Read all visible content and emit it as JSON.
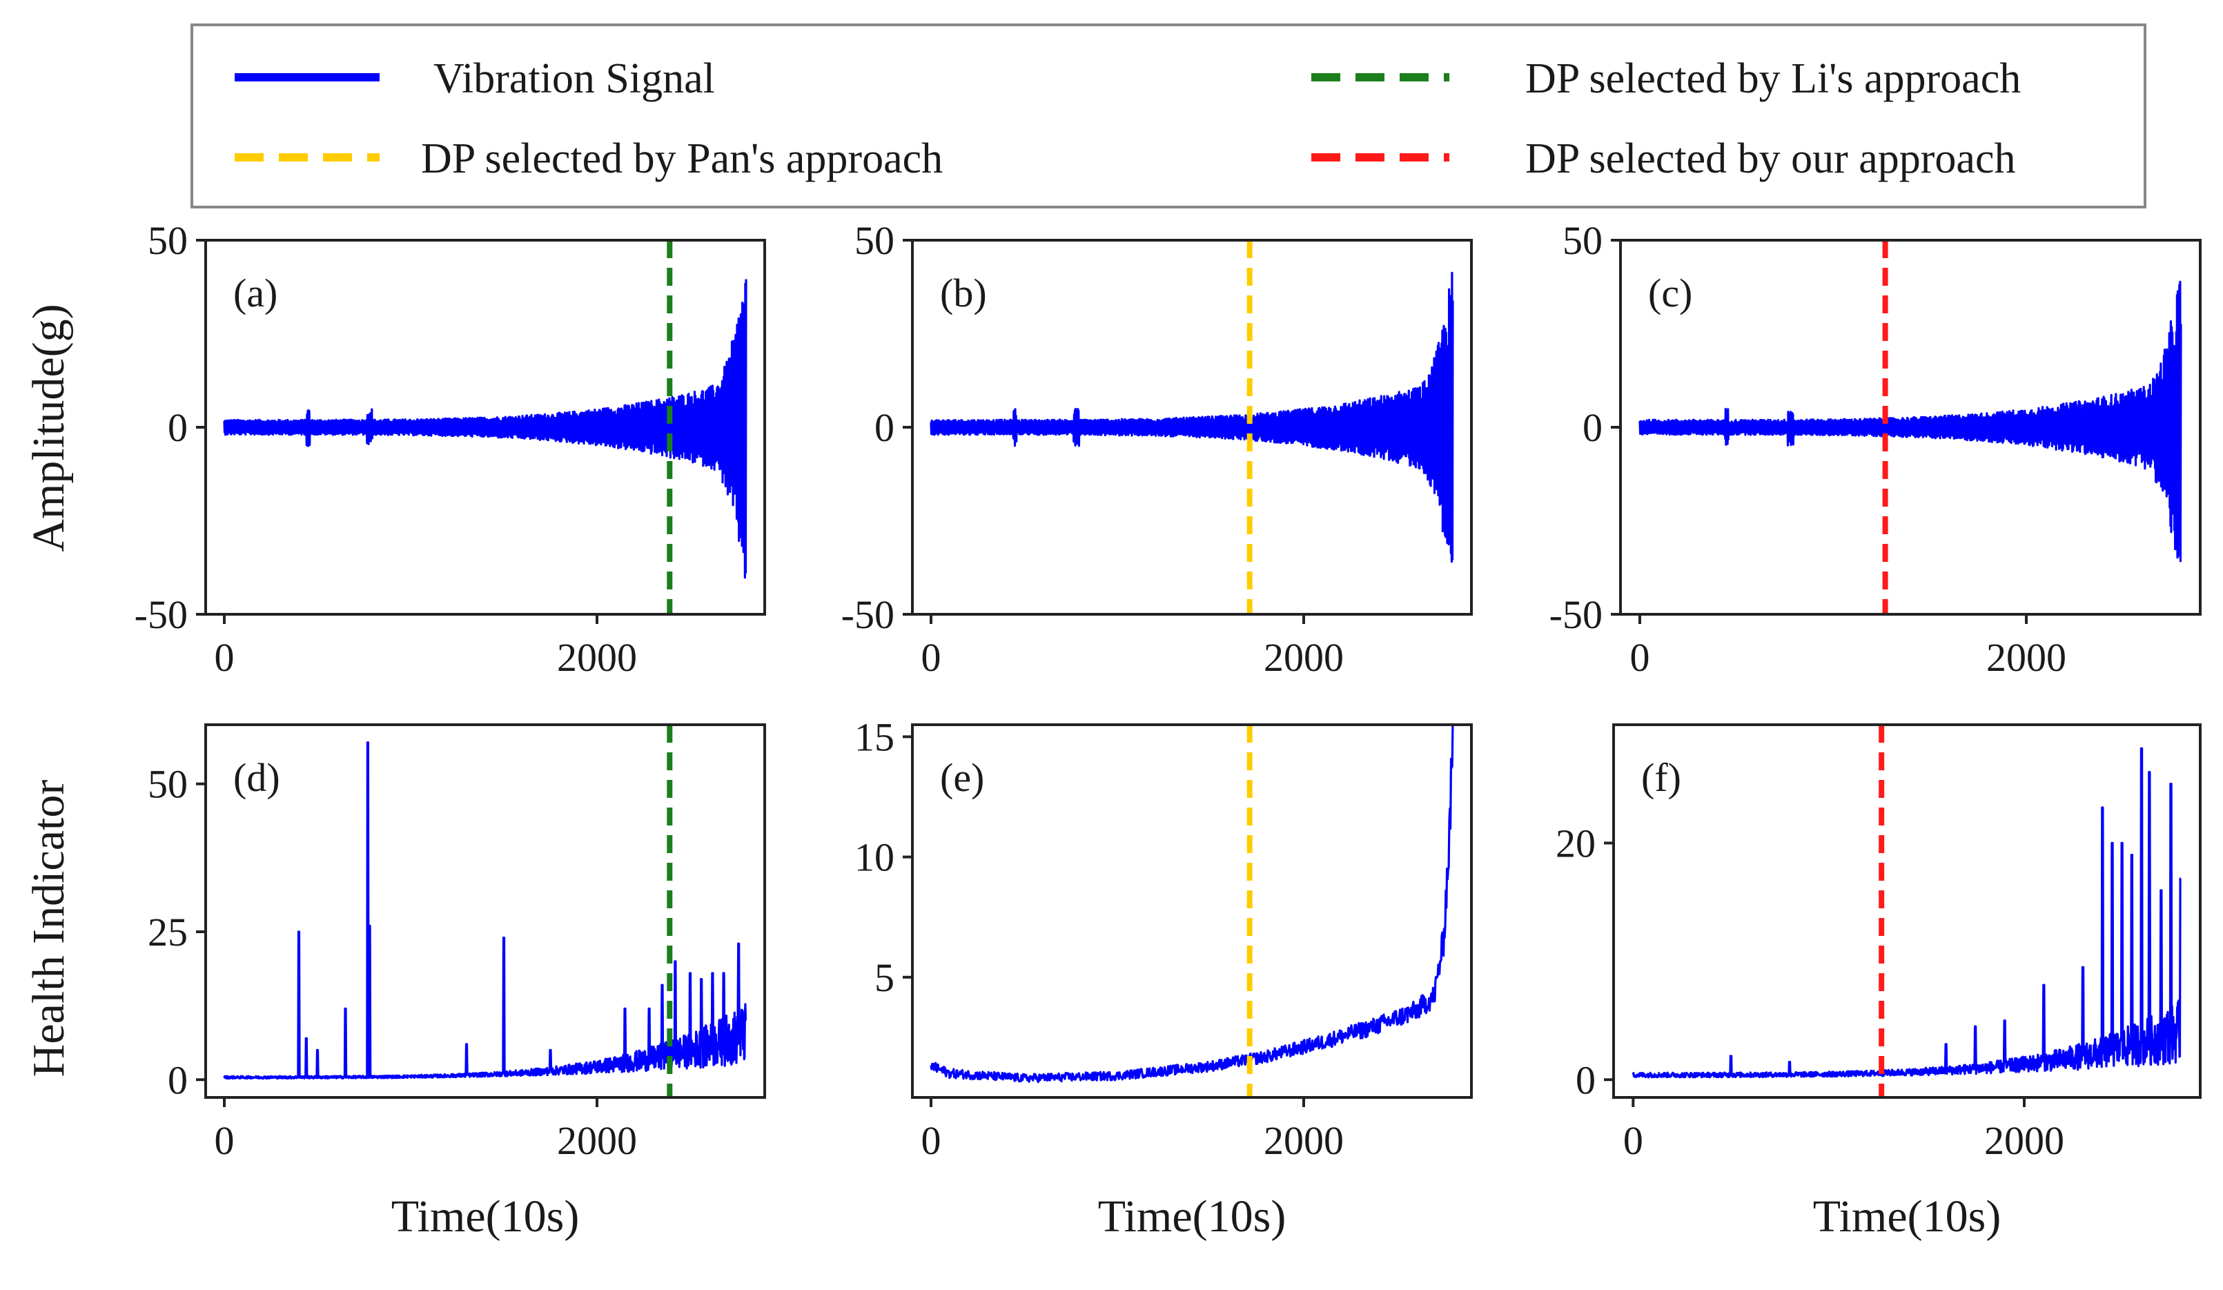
{
  "legend": {
    "entries": [
      {
        "label": "Vibration Signal",
        "color": "#0000ff",
        "style": "solid"
      },
      {
        "label": "DP selected by Li's  approach",
        "color": "#1b7f1b",
        "style": "dashed"
      },
      {
        "label": "DP selected by Pan's  approach",
        "color": "#ffcc00",
        "style": "dashed"
      },
      {
        "label": "DP selected by our  approach",
        "color": "#ff1a1a",
        "style": "dashed"
      }
    ]
  },
  "labels": {
    "amplitude_ylabel": "Amplitude(g)",
    "health_ylabel": "Health Indicator",
    "xlabel": "Time(10s)"
  },
  "chart_data": [
    {
      "id": "a",
      "type": "line",
      "label": "(a)",
      "signal": "vibration",
      "xlim": [
        -100,
        2900
      ],
      "ylim": [
        -50,
        50
      ],
      "xticks": [
        0,
        2000
      ],
      "yticks": [
        -50,
        0,
        50
      ],
      "series_end": 2800,
      "dp": {
        "x": 2390,
        "color": "#1b7f1b"
      }
    },
    {
      "id": "b",
      "type": "line",
      "label": "(b)",
      "signal": "vibration",
      "xlim": [
        -100,
        2900
      ],
      "ylim": [
        -50,
        50
      ],
      "xticks": [
        0,
        2000
      ],
      "yticks": [
        -50,
        0,
        50
      ],
      "series_end": 2800,
      "dp": {
        "x": 1710,
        "color": "#ffcc00"
      }
    },
    {
      "id": "c",
      "type": "line",
      "label": "(c)",
      "signal": "vibration",
      "xlim": [
        -100,
        2900
      ],
      "ylim": [
        -50,
        50
      ],
      "xticks": [
        0,
        2000
      ],
      "yticks": [
        -50,
        0,
        50
      ],
      "series_end": 2800,
      "dp": {
        "x": 1270,
        "color": "#ff1a1a"
      }
    },
    {
      "id": "d",
      "type": "line",
      "label": "(d)",
      "signal": "health",
      "xlim": [
        -100,
        2900
      ],
      "ylim": [
        -3,
        60
      ],
      "xticks": [
        0,
        2000
      ],
      "yticks": [
        0,
        25,
        50
      ],
      "xlabel": "Time(10s)",
      "series_end": 2800,
      "dp": {
        "x": 2390,
        "color": "#1b7f1b"
      },
      "spikes": [
        [
          400,
          25
        ],
        [
          440,
          7
        ],
        [
          500,
          5
        ],
        [
          650,
          12
        ],
        [
          770,
          57
        ],
        [
          780,
          26
        ],
        [
          1300,
          6
        ],
        [
          1500,
          24
        ],
        [
          1750,
          5
        ],
        [
          2150,
          12
        ],
        [
          2280,
          12
        ],
        [
          2350,
          16
        ],
        [
          2420,
          20
        ],
        [
          2500,
          18
        ],
        [
          2560,
          17
        ],
        [
          2620,
          18
        ],
        [
          2680,
          18
        ],
        [
          2760,
          23
        ],
        [
          2800,
          10
        ]
      ]
    },
    {
      "id": "e",
      "type": "line",
      "label": "(e)",
      "signal": "health",
      "xlim": [
        -100,
        2900
      ],
      "ylim": [
        0,
        15.5
      ],
      "xticks": [
        0,
        2000
      ],
      "yticks": [
        5,
        10,
        15
      ],
      "xlabel": "Time(10s)",
      "series_end": 2800,
      "dp": {
        "x": 1710,
        "color": "#ffcc00"
      },
      "trend": [
        [
          0,
          1.3
        ],
        [
          100,
          1.0
        ],
        [
          500,
          0.8
        ],
        [
          1000,
          0.9
        ],
        [
          1500,
          1.3
        ],
        [
          1800,
          1.7
        ],
        [
          2100,
          2.3
        ],
        [
          2400,
          3.0
        ],
        [
          2600,
          3.6
        ],
        [
          2700,
          4.2
        ],
        [
          2750,
          6.5
        ],
        [
          2780,
          10.5
        ],
        [
          2800,
          15
        ]
      ]
    },
    {
      "id": "f",
      "type": "line",
      "label": "(f)",
      "signal": "health",
      "xlim": [
        -100,
        2900
      ],
      "ylim": [
        -1.5,
        30
      ],
      "xticks": [
        0,
        2000
      ],
      "yticks": [
        0,
        20
      ],
      "xlabel": "Time(10s)",
      "series_end": 2800,
      "dp": {
        "x": 1270,
        "color": "#ff1a1a"
      },
      "spikes": [
        [
          500,
          2
        ],
        [
          800,
          1.5
        ],
        [
          1600,
          3
        ],
        [
          1750,
          4.5
        ],
        [
          1900,
          5
        ],
        [
          2100,
          8
        ],
        [
          2300,
          9.5
        ],
        [
          2400,
          23
        ],
        [
          2450,
          20
        ],
        [
          2500,
          20
        ],
        [
          2550,
          19
        ],
        [
          2600,
          28
        ],
        [
          2640,
          26
        ],
        [
          2700,
          16
        ],
        [
          2750,
          25
        ],
        [
          2800,
          17
        ]
      ]
    }
  ]
}
